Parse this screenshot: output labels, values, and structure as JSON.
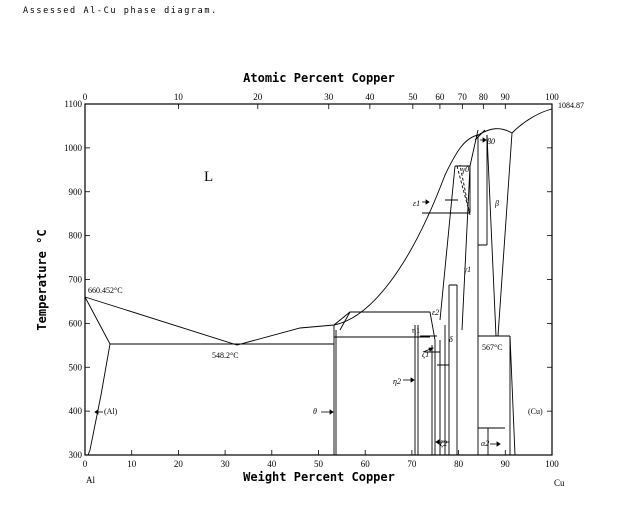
{
  "caption": "Assessed Al-Cu phase diagram.",
  "top_axis_title": "Atomic Percent Copper",
  "bottom_axis_title": "Weight Percent Copper",
  "y_axis_title": "Temperature °C",
  "corner_left": "Al",
  "corner_right": "Cu",
  "liquid_label": "L",
  "temperatures": {
    "al_melt": "660.452°C",
    "eutectic": "548.2°C",
    "eutectoid": "567°C",
    "cu_melt": "1084.87"
  },
  "phase_labels": {
    "al": "(Al)",
    "cu": "(Cu)",
    "theta": "θ",
    "eta1": "η1",
    "eta2": "η2",
    "zeta1": "ζ1",
    "zeta2": "ζ2",
    "delta": "δ",
    "epsilon1": "ε1",
    "epsilon2": "ε2",
    "gamma0": "γ0",
    "gamma1": "γ1",
    "beta": "β",
    "beta0": "β0",
    "alpha2": "α2"
  },
  "chart_data": {
    "type": "diagram",
    "xlim": [
      0,
      100
    ],
    "ylim": [
      300,
      1100
    ],
    "bottom_ticks": [
      "0",
      "10",
      "20",
      "30",
      "40",
      "50",
      "60",
      "70",
      "80",
      "90",
      "100"
    ],
    "top_ticks": [
      "0",
      "10",
      "20",
      "30",
      "40",
      "50",
      "60",
      "70",
      "80",
      "90",
      "100"
    ],
    "y_ticks": [
      "300",
      "400",
      "500",
      "600",
      "700",
      "800",
      "900",
      "1000",
      "1100"
    ]
  }
}
